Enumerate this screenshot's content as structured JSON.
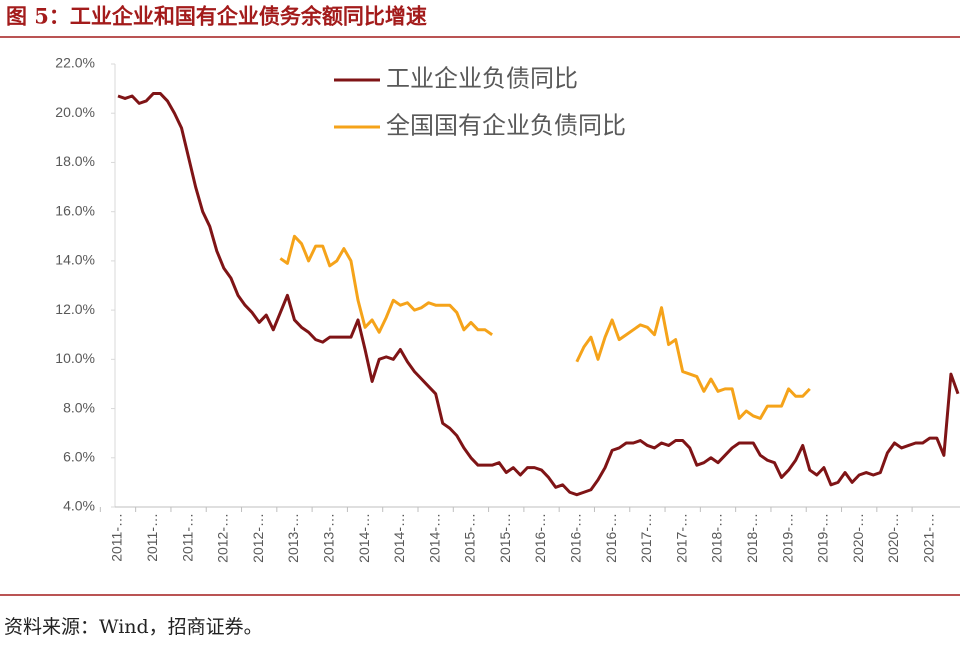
{
  "chart_data": {
    "type": "line",
    "title": "图 5：工业企业和国有企业债务余额同比增速",
    "source": "资料来源：Wind，招商证券。",
    "categories": [
      "2011-…",
      null,
      null,
      null,
      null,
      "2011-…",
      null,
      null,
      null,
      null,
      "2011-…",
      null,
      null,
      null,
      null,
      "2012-…",
      null,
      null,
      null,
      null,
      "2012-…",
      null,
      null,
      null,
      null,
      "2013-…",
      null,
      null,
      null,
      null,
      "2013-…",
      null,
      null,
      null,
      null,
      "2014-…",
      null,
      null,
      null,
      null,
      "2014-…",
      null,
      null,
      null,
      null,
      "2014-…",
      null,
      null,
      null,
      null,
      "2015-…",
      null,
      null,
      null,
      null,
      "2015-…",
      null,
      null,
      null,
      null,
      "2016-…",
      null,
      null,
      null,
      null,
      "2016-…",
      null,
      null,
      null,
      null,
      "2016-…",
      null,
      null,
      null,
      null,
      "2017-…",
      null,
      null,
      null,
      null,
      "2017-…",
      null,
      null,
      null,
      null,
      "2018-…",
      null,
      null,
      null,
      null,
      "2018-…",
      null,
      null,
      null,
      null,
      "2019-…",
      null,
      null,
      null,
      null,
      "2019-…",
      null,
      null,
      null,
      null,
      "2020-…",
      null,
      null,
      null,
      null,
      "2020-…",
      null,
      null,
      null,
      null,
      "2021-…",
      null,
      null,
      null,
      null
    ],
    "series": [
      {
        "name": "工业企业负债同比",
        "color": "#7f1416",
        "values": [
          20.7,
          20.6,
          20.7,
          20.4,
          20.5,
          20.8,
          20.8,
          20.5,
          20.0,
          19.4,
          18.2,
          17.0,
          16.0,
          15.4,
          14.4,
          13.7,
          13.3,
          12.6,
          12.2,
          11.9,
          11.5,
          11.8,
          11.2,
          11.9,
          12.6,
          11.6,
          11.3,
          11.1,
          10.8,
          10.7,
          10.9,
          10.9,
          10.9,
          10.9,
          11.6,
          10.4,
          9.1,
          10.0,
          10.1,
          10.0,
          10.4,
          9.9,
          9.5,
          9.2,
          8.9,
          8.6,
          7.4,
          7.2,
          6.9,
          6.4,
          6.0,
          5.7,
          5.7,
          5.7,
          5.8,
          5.4,
          5.6,
          5.3,
          5.6,
          5.6,
          5.5,
          5.2,
          4.8,
          4.9,
          4.6,
          4.5,
          4.6,
          4.7,
          5.1,
          5.6,
          6.3,
          6.4,
          6.6,
          6.6,
          6.7,
          6.5,
          6.4,
          6.6,
          6.5,
          6.7,
          6.7,
          6.4,
          5.7,
          5.8,
          6.0,
          5.8,
          6.1,
          6.4,
          6.6,
          6.6,
          6.6,
          6.1,
          5.9,
          5.8,
          5.2,
          5.5,
          5.9,
          6.5,
          5.5,
          5.3,
          5.6,
          4.9,
          5.0,
          5.4,
          5.0,
          5.3,
          5.4,
          5.3,
          5.4,
          6.2,
          6.6,
          6.4,
          6.5,
          6.6,
          6.6,
          6.8,
          6.8,
          6.1,
          9.4,
          8.6
        ]
      },
      {
        "name": "全国国有企业负债同比",
        "color": "#f5a31a",
        "values": [
          null,
          null,
          null,
          null,
          null,
          null,
          null,
          null,
          null,
          null,
          null,
          null,
          null,
          null,
          null,
          null,
          null,
          null,
          null,
          null,
          null,
          null,
          null,
          14.1,
          13.9,
          15.0,
          14.7,
          14.0,
          14.6,
          14.6,
          13.8,
          14.0,
          14.5,
          14.0,
          12.4,
          11.3,
          11.6,
          11.1,
          11.7,
          12.4,
          12.2,
          12.3,
          12.0,
          12.1,
          12.3,
          12.2,
          12.2,
          12.2,
          11.9,
          11.2,
          11.5,
          11.2,
          11.2,
          11.0,
          null,
          null,
          null,
          null,
          null,
          null,
          null,
          null,
          null,
          null,
          null,
          9.9,
          10.5,
          10.9,
          10.0,
          10.9,
          11.6,
          10.8,
          11.0,
          11.2,
          11.4,
          11.3,
          11.0,
          12.1,
          10.6,
          10.8,
          9.5,
          9.4,
          9.3,
          8.7,
          9.2,
          8.7,
          8.8,
          8.8,
          7.6,
          7.9,
          7.7,
          7.6,
          8.1,
          8.1,
          8.1,
          8.8,
          8.5,
          8.5,
          8.8,
          null,
          null,
          null,
          null,
          null,
          null,
          null,
          null,
          null,
          null,
          null,
          null,
          null,
          null,
          null,
          null,
          null,
          null,
          null,
          null,
          null
        ]
      }
    ],
    "ylim": [
      4,
      22
    ],
    "yticks": [
      {
        "value": 4,
        "label": "4.0%"
      },
      {
        "value": 6,
        "label": "6.0%"
      },
      {
        "value": 8,
        "label": "8.0%"
      },
      {
        "value": 10,
        "label": "10.0%"
      },
      {
        "value": 12,
        "label": "12.0%"
      },
      {
        "value": 14,
        "label": "14.0%"
      },
      {
        "value": 16,
        "label": "16.0%"
      },
      {
        "value": 18,
        "label": "18.0%"
      },
      {
        "value": 20,
        "label": "20.0%"
      },
      {
        "value": 22,
        "label": "22.0%"
      }
    ],
    "legend": "top-left",
    "grid": false
  }
}
